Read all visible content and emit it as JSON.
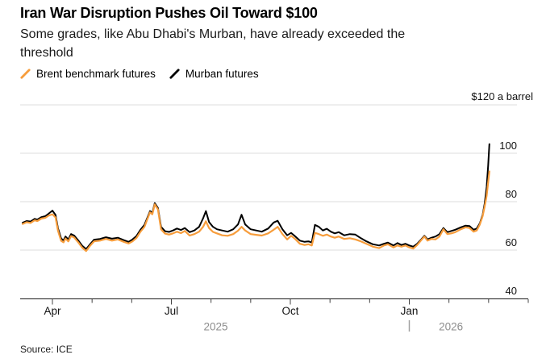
{
  "chart_data": {
    "type": "line",
    "title": "Iran War Disruption Pushes Oil Toward $100",
    "subtitle_lines": [
      "Some grades, like Abu Dhabi's Murban, have already exceeded the",
      "threshold"
    ],
    "source": "Source: ICE",
    "unit_label": "$120 a barrel",
    "x_unit": "months from 2025-04-01 (0 = Apr 2025 tick)",
    "xlim": [
      -0.8,
      12
    ],
    "ylim": [
      40,
      120
    ],
    "yticks_gridlines": [
      60,
      80,
      100,
      120
    ],
    "ytick_right_labels": [
      {
        "value": 40,
        "label": "40"
      },
      {
        "value": 60,
        "label": "60"
      },
      {
        "value": 80,
        "label": "80"
      },
      {
        "value": 100,
        "label": "100"
      }
    ],
    "grid": "horizontal",
    "legend_position": "top-left",
    "xticks_minor_months": [
      0,
      1,
      2,
      3,
      4,
      5,
      6,
      7,
      8,
      9,
      10,
      11,
      12
    ],
    "xticks_major": [
      {
        "t": 0,
        "label": "Apr"
      },
      {
        "t": 3,
        "label": "Jul"
      },
      {
        "t": 6,
        "label": "Oct"
      },
      {
        "t": 9,
        "label": "Jan"
      }
    ],
    "year_labels": [
      {
        "t": 4.12,
        "label": "2025"
      },
      {
        "t": 10.05,
        "label": "2026"
      }
    ],
    "year_divider_t": 9,
    "axis_color": "#1a1a1a",
    "gridline_color": "#dcdcdc",
    "year_label_color": "#8d8d8d",
    "series": [
      {
        "name": "Brent benchmark futures",
        "color": "#f79d3c",
        "points": [
          [
            -0.75,
            70.8
          ],
          [
            -0.65,
            71.5
          ],
          [
            -0.55,
            71.2
          ],
          [
            -0.45,
            72.3
          ],
          [
            -0.38,
            72.0
          ],
          [
            -0.28,
            73.0
          ],
          [
            -0.18,
            73.3
          ],
          [
            -0.1,
            74.2
          ],
          [
            0,
            74.8
          ],
          [
            0.08,
            73.5
          ],
          [
            0.14,
            68.0
          ],
          [
            0.22,
            63.8
          ],
          [
            0.28,
            63.2
          ],
          [
            0.33,
            64.8
          ],
          [
            0.4,
            63.6
          ],
          [
            0.47,
            65.8
          ],
          [
            0.55,
            65.2
          ],
          [
            0.65,
            63.2
          ],
          [
            0.75,
            61.0
          ],
          [
            0.85,
            59.6
          ],
          [
            0.95,
            61.8
          ],
          [
            1.05,
            63.6
          ],
          [
            1.2,
            63.9
          ],
          [
            1.35,
            64.6
          ],
          [
            1.5,
            63.9
          ],
          [
            1.65,
            64.4
          ],
          [
            1.8,
            63.4
          ],
          [
            1.92,
            62.7
          ],
          [
            2.02,
            63.6
          ],
          [
            2.12,
            65.0
          ],
          [
            2.22,
            67.6
          ],
          [
            2.32,
            69.6
          ],
          [
            2.4,
            73.0
          ],
          [
            2.46,
            75.6
          ],
          [
            2.52,
            74.8
          ],
          [
            2.58,
            78.9
          ],
          [
            2.66,
            76.8
          ],
          [
            2.74,
            68.6
          ],
          [
            2.84,
            66.8
          ],
          [
            2.94,
            66.4
          ],
          [
            3.04,
            66.9
          ],
          [
            3.14,
            67.6
          ],
          [
            3.24,
            67.0
          ],
          [
            3.34,
            67.9
          ],
          [
            3.46,
            66.0
          ],
          [
            3.58,
            66.6
          ],
          [
            3.7,
            67.6
          ],
          [
            3.8,
            69.6
          ],
          [
            3.87,
            71.9
          ],
          [
            3.95,
            69.1
          ],
          [
            4.05,
            67.5
          ],
          [
            4.15,
            66.9
          ],
          [
            4.28,
            66.1
          ],
          [
            4.42,
            65.9
          ],
          [
            4.56,
            66.6
          ],
          [
            4.68,
            68.0
          ],
          [
            4.77,
            69.6
          ],
          [
            4.86,
            68.1
          ],
          [
            5.0,
            66.6
          ],
          [
            5.14,
            66.3
          ],
          [
            5.28,
            66.0
          ],
          [
            5.44,
            66.9
          ],
          [
            5.58,
            68.4
          ],
          [
            5.68,
            69.6
          ],
          [
            5.8,
            66.6
          ],
          [
            5.92,
            64.4
          ],
          [
            6.02,
            65.9
          ],
          [
            6.12,
            64.6
          ],
          [
            6.24,
            62.6
          ],
          [
            6.36,
            62.1
          ],
          [
            6.46,
            62.4
          ],
          [
            6.54,
            61.9
          ],
          [
            6.62,
            67.1
          ],
          [
            6.72,
            66.6
          ],
          [
            6.82,
            65.9
          ],
          [
            6.92,
            66.4
          ],
          [
            7.02,
            65.6
          ],
          [
            7.12,
            65.1
          ],
          [
            7.22,
            65.6
          ],
          [
            7.36,
            64.6
          ],
          [
            7.5,
            64.9
          ],
          [
            7.64,
            64.4
          ],
          [
            7.78,
            63.6
          ],
          [
            7.92,
            62.6
          ],
          [
            8.08,
            61.4
          ],
          [
            8.24,
            60.8
          ],
          [
            8.36,
            61.9
          ],
          [
            8.46,
            62.4
          ],
          [
            8.6,
            61.1
          ],
          [
            8.7,
            61.9
          ],
          [
            8.8,
            61.4
          ],
          [
            8.9,
            61.9
          ],
          [
            9.0,
            61.1
          ],
          [
            9.1,
            60.6
          ],
          [
            9.2,
            62.1
          ],
          [
            9.3,
            64.1
          ],
          [
            9.38,
            65.6
          ],
          [
            9.46,
            63.9
          ],
          [
            9.56,
            64.6
          ],
          [
            9.66,
            64.4
          ],
          [
            9.76,
            65.6
          ],
          [
            9.86,
            68.6
          ],
          [
            9.96,
            66.6
          ],
          [
            10.06,
            66.9
          ],
          [
            10.16,
            67.4
          ],
          [
            10.3,
            68.6
          ],
          [
            10.42,
            69.4
          ],
          [
            10.52,
            69.1
          ],
          [
            10.62,
            67.6
          ],
          [
            10.7,
            68.1
          ],
          [
            10.78,
            70.6
          ],
          [
            10.85,
            74.1
          ],
          [
            10.9,
            77.9
          ],
          [
            10.95,
            82.5
          ],
          [
            10.99,
            88.0
          ],
          [
            11.02,
            92.5
          ]
        ]
      },
      {
        "name": "Murban futures",
        "color": "#000000",
        "points": [
          [
            -0.75,
            71.3
          ],
          [
            -0.65,
            72.0
          ],
          [
            -0.55,
            71.8
          ],
          [
            -0.45,
            72.9
          ],
          [
            -0.38,
            72.6
          ],
          [
            -0.28,
            73.6
          ],
          [
            -0.18,
            74.0
          ],
          [
            -0.1,
            75.0
          ],
          [
            0,
            76.3
          ],
          [
            0.08,
            74.5
          ],
          [
            0.14,
            69.0
          ],
          [
            0.22,
            64.8
          ],
          [
            0.28,
            64.0
          ],
          [
            0.33,
            65.6
          ],
          [
            0.4,
            64.4
          ],
          [
            0.47,
            66.6
          ],
          [
            0.55,
            66.0
          ],
          [
            0.65,
            64.0
          ],
          [
            0.75,
            61.8
          ],
          [
            0.85,
            60.4
          ],
          [
            0.95,
            62.4
          ],
          [
            1.05,
            64.3
          ],
          [
            1.2,
            64.6
          ],
          [
            1.35,
            65.3
          ],
          [
            1.5,
            64.7
          ],
          [
            1.65,
            65.1
          ],
          [
            1.8,
            64.1
          ],
          [
            1.92,
            63.4
          ],
          [
            2.02,
            64.4
          ],
          [
            2.12,
            65.8
          ],
          [
            2.22,
            68.4
          ],
          [
            2.32,
            70.4
          ],
          [
            2.4,
            73.6
          ],
          [
            2.46,
            76.1
          ],
          [
            2.52,
            75.4
          ],
          [
            2.58,
            79.4
          ],
          [
            2.66,
            77.4
          ],
          [
            2.74,
            69.6
          ],
          [
            2.84,
            67.8
          ],
          [
            2.94,
            67.5
          ],
          [
            3.04,
            68.1
          ],
          [
            3.14,
            68.9
          ],
          [
            3.24,
            68.3
          ],
          [
            3.34,
            69.1
          ],
          [
            3.46,
            67.4
          ],
          [
            3.58,
            68.1
          ],
          [
            3.7,
            69.6
          ],
          [
            3.8,
            73.1
          ],
          [
            3.87,
            76.1
          ],
          [
            3.95,
            71.6
          ],
          [
            4.05,
            69.6
          ],
          [
            4.15,
            68.6
          ],
          [
            4.28,
            68.1
          ],
          [
            4.42,
            67.6
          ],
          [
            4.56,
            68.6
          ],
          [
            4.68,
            70.6
          ],
          [
            4.77,
            74.6
          ],
          [
            4.86,
            70.6
          ],
          [
            5.0,
            68.6
          ],
          [
            5.14,
            68.1
          ],
          [
            5.28,
            67.6
          ],
          [
            5.44,
            68.9
          ],
          [
            5.58,
            71.4
          ],
          [
            5.68,
            72.1
          ],
          [
            5.8,
            68.6
          ],
          [
            5.92,
            66.1
          ],
          [
            6.02,
            67.1
          ],
          [
            6.12,
            65.7
          ],
          [
            6.24,
            63.9
          ],
          [
            6.36,
            63.4
          ],
          [
            6.46,
            63.6
          ],
          [
            6.54,
            63.1
          ],
          [
            6.62,
            70.4
          ],
          [
            6.72,
            69.6
          ],
          [
            6.82,
            68.1
          ],
          [
            6.92,
            68.8
          ],
          [
            7.02,
            67.6
          ],
          [
            7.12,
            66.9
          ],
          [
            7.22,
            67.4
          ],
          [
            7.36,
            66.1
          ],
          [
            7.5,
            66.6
          ],
          [
            7.64,
            66.4
          ],
          [
            7.78,
            64.9
          ],
          [
            7.92,
            63.6
          ],
          [
            8.08,
            62.4
          ],
          [
            8.24,
            61.9
          ],
          [
            8.36,
            62.6
          ],
          [
            8.46,
            63.1
          ],
          [
            8.6,
            61.9
          ],
          [
            8.7,
            62.9
          ],
          [
            8.8,
            62.1
          ],
          [
            8.9,
            62.6
          ],
          [
            9.0,
            61.9
          ],
          [
            9.1,
            61.4
          ],
          [
            9.2,
            62.6
          ],
          [
            9.3,
            64.4
          ],
          [
            9.38,
            65.9
          ],
          [
            9.46,
            64.4
          ],
          [
            9.56,
            65.1
          ],
          [
            9.66,
            65.6
          ],
          [
            9.76,
            66.6
          ],
          [
            9.86,
            69.1
          ],
          [
            9.96,
            67.4
          ],
          [
            10.06,
            67.9
          ],
          [
            10.16,
            68.4
          ],
          [
            10.3,
            69.4
          ],
          [
            10.42,
            70.1
          ],
          [
            10.52,
            69.9
          ],
          [
            10.62,
            68.4
          ],
          [
            10.7,
            68.9
          ],
          [
            10.78,
            71.1
          ],
          [
            10.85,
            74.6
          ],
          [
            10.9,
            79.1
          ],
          [
            10.95,
            86.0
          ],
          [
            10.99,
            95.0
          ],
          [
            11.02,
            103.8
          ]
        ]
      }
    ]
  }
}
